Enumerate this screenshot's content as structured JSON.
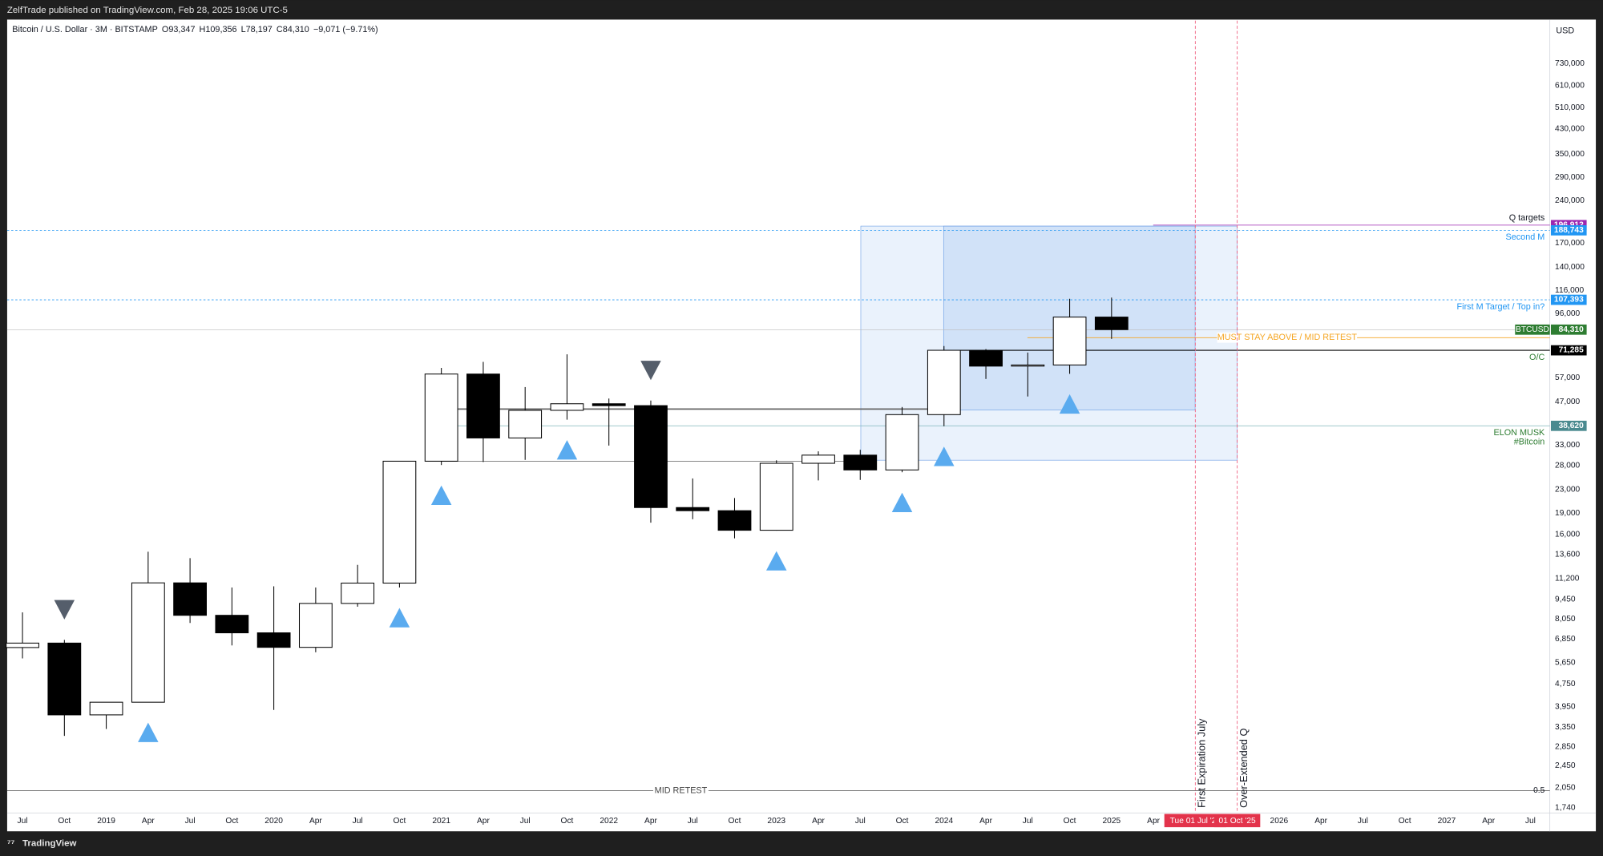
{
  "header": "ZelfTrade published on TradingView.com, Feb 28, 2025 19:06 UTC-5",
  "footer": "TradingView",
  "chart_data": {
    "type": "candlestick",
    "symbol": "Bitcoin / U.S. Dollar · 3M · BITSTAMP",
    "legend": [
      "O93,347",
      "H109,356",
      "L78,197",
      "C84,310",
      "−9,071 (−9.71%)"
    ],
    "currency": "USD",
    "categories": [
      "Jul",
      "Oct",
      "2019",
      "Apr",
      "Jul",
      "Oct",
      "2020",
      "Apr",
      "Jul",
      "Oct",
      "2021",
      "Apr",
      "Jul",
      "Oct",
      "2022",
      "Apr",
      "Jul",
      "Oct",
      "2023",
      "Apr",
      "Jul",
      "Oct",
      "2024",
      "Apr",
      "Jul",
      "Oct",
      "2025",
      "Apr",
      null,
      null,
      "2026",
      "Apr",
      "Jul",
      "Oct",
      "2027",
      "Apr",
      "Jul"
    ],
    "open": [
      6390,
      6625,
      3700,
      4100,
      10800,
      8300,
      7200,
      6400,
      9140,
      10780,
      28990,
      58800,
      35000,
      43800,
      46200,
      45500,
      19900,
      19400,
      16550,
      28500,
      30450,
      27000,
      42300,
      71300,
      62700,
      63300,
      93347,
      null,
      null,
      null,
      null,
      null,
      null,
      null,
      null,
      null,
      null
    ],
    "high": [
      8500,
      6800,
      4100,
      13900,
      13200,
      10400,
      10500,
      10400,
      12500,
      29000,
      61800,
      64900,
      52900,
      69000,
      48200,
      47400,
      25200,
      21500,
      29200,
      31400,
      31800,
      45000,
      73800,
      72000,
      70000,
      108300,
      109356,
      null,
      null,
      null,
      null,
      null,
      null,
      null,
      null,
      null,
      null
    ],
    "low": [
      5850,
      3120,
      3300,
      4100,
      7800,
      6500,
      3850,
      6150,
      8900,
      10400,
      28100,
      28800,
      29300,
      40600,
      32900,
      17600,
      18100,
      15500,
      16500,
      24800,
      24900,
      26500,
      38500,
      56500,
      49000,
      58900,
      78197,
      null,
      null,
      null,
      null,
      null,
      null,
      null,
      null,
      null,
      null
    ],
    "close": [
      6625,
      3700,
      4100,
      10800,
      8300,
      7200,
      6400,
      9140,
      10780,
      28990,
      58800,
      35000,
      43800,
      46200,
      45500,
      19900,
      19400,
      16550,
      28500,
      30450,
      27000,
      42300,
      71300,
      62700,
      63300,
      93347,
      84310,
      null,
      null,
      null,
      null,
      null,
      null,
      null,
      null,
      null,
      null
    ],
    "up_color": "#ffffff",
    "down_color": "#000000",
    "log_scale": true,
    "ylim": [
      1670,
      1035000
    ],
    "yticks": [
      {
        "value": 730000,
        "label": "730,000"
      },
      {
        "value": 610000,
        "label": "610,000"
      },
      {
        "value": 510000,
        "label": "510,000"
      },
      {
        "value": 430000,
        "label": "430,000"
      },
      {
        "value": 350000,
        "label": "350,000"
      },
      {
        "value": 290000,
        "label": "290,000"
      },
      {
        "value": 240000,
        "label": "240,000"
      },
      {
        "value": 170000,
        "label": "170,000"
      },
      {
        "value": 140000,
        "label": "140,000"
      },
      {
        "value": 116000,
        "label": "116,000"
      },
      {
        "value": 96000,
        "label": "96,000"
      },
      {
        "value": 57000,
        "label": "57,000"
      },
      {
        "value": 47000,
        "label": "47,000"
      },
      {
        "value": 33000,
        "label": "33,000"
      },
      {
        "value": 28000,
        "label": "28,000"
      },
      {
        "value": 23000,
        "label": "23,000"
      },
      {
        "value": 19000,
        "label": "19,000"
      },
      {
        "value": 16000,
        "label": "16,000"
      },
      {
        "value": 13600,
        "label": "13,600"
      },
      {
        "value": 11200,
        "label": "11,200"
      },
      {
        "value": 9450,
        "label": "9,450"
      },
      {
        "value": 8050,
        "label": "8,050"
      },
      {
        "value": 6850,
        "label": "6,850"
      },
      {
        "value": 5650,
        "label": "5,650"
      },
      {
        "value": 4750,
        "label": "4,750"
      },
      {
        "value": 3950,
        "label": "3,950"
      },
      {
        "value": 3350,
        "label": "3,350"
      },
      {
        "value": 2850,
        "label": "2,850"
      },
      {
        "value": 2450,
        "label": "2,450"
      },
      {
        "value": 2050,
        "label": "2,050"
      },
      {
        "value": 1740,
        "label": "1,740"
      }
    ],
    "levels": [
      {
        "value": 196912,
        "label": "196,912",
        "color": "#9c27b0",
        "text": "Q targets"
      },
      {
        "value": 188743,
        "label": "188,743",
        "color": "#2196f3",
        "text": "Second M"
      },
      {
        "value": 107393,
        "label": "107,393",
        "color": "#2196f3",
        "text": "First M Target / Top in?"
      },
      {
        "value": 84310,
        "label": "84,310",
        "color": "#2e7d32",
        "text": "BTCUSD"
      },
      {
        "value": 79000,
        "color": "#f5a623",
        "text": "MUST STAY ABOVE / MID RETEST"
      },
      {
        "value": 71285,
        "label": "71,285",
        "color": "#000000",
        "text": "O/C"
      },
      {
        "value": 38620,
        "label": "38,620",
        "color": "#4a8a8f",
        "text": "ELON MUSK",
        "note": "#Bitcoin"
      },
      {
        "value": 2000,
        "color": "#444444",
        "text": "MID RETEST",
        "note": "0.5"
      }
    ],
    "markers": [
      {
        "index": 28,
        "label": "Tue 01 Jul '25",
        "text": "First Expiration July"
      },
      {
        "index": 29,
        "label": "01 Oct '25",
        "text": "Over-Extended Q"
      }
    ]
  }
}
